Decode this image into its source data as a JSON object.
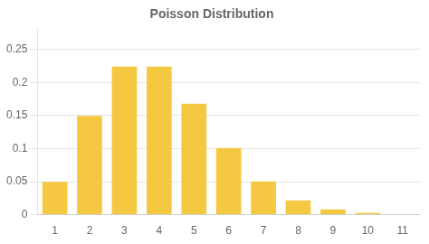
{
  "chart_data": {
    "type": "bar",
    "title": "Poisson Distribution",
    "categories": [
      "1",
      "2",
      "3",
      "4",
      "5",
      "6",
      "7",
      "8",
      "9",
      "10",
      "11"
    ],
    "values": [
      0.049787068,
      0.149361205,
      0.224041808,
      0.224041808,
      0.168031356,
      0.100818813,
      0.050409407,
      0.021604031,
      0.008101512,
      0.002700504,
      0.000810151
    ],
    "color": "#F5C842",
    "ylim": [
      0,
      0.28
    ],
    "yticks": [
      0,
      0.05,
      0.1,
      0.15,
      0.2,
      0.25
    ],
    "grid": true
  }
}
